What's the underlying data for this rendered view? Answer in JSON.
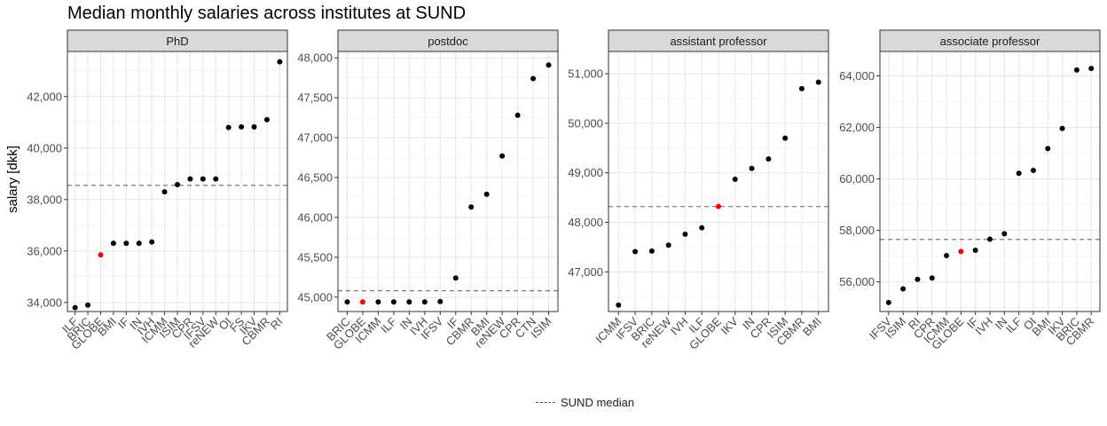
{
  "chart_data": {
    "type": "scatter",
    "title": "Median monthly salaries across institutes at SUND",
    "ylabel": "salary [dkk]",
    "legend": {
      "label": "SUND median",
      "position": "bottom"
    },
    "grid": true,
    "highlight_category": "GLOBE",
    "colors": {
      "point": "#000000",
      "highlight": "#ff0000",
      "strip": "#d9d9d9",
      "median_line": "#777777"
    },
    "panels": [
      {
        "name": "PhD",
        "median": 38550,
        "ylim": [
          33650,
          43750
        ],
        "yticks": [
          34000,
          36000,
          38000,
          40000,
          42000
        ],
        "ytick_labels": [
          "34,000",
          "36,000",
          "38,000",
          "40,000",
          "42,000"
        ],
        "categories": [
          "ILF",
          "BRIC",
          "GLOBE",
          "BMI",
          "IF",
          "IN",
          "IVH",
          "ICMM",
          "ISIM",
          "CPR",
          "IFSV",
          "reNEW",
          "OI",
          "FS",
          "IKV",
          "CBMR",
          "RI"
        ],
        "values": [
          33800,
          33900,
          35850,
          36300,
          36300,
          36300,
          36350,
          38300,
          38580,
          38800,
          38800,
          38800,
          40800,
          40820,
          40820,
          41100,
          43350
        ]
      },
      {
        "name": "postdoc",
        "median": 45080,
        "ylim": [
          44820,
          48080
        ],
        "yticks": [
          45000,
          45500,
          46000,
          46500,
          47000,
          47500,
          48000
        ],
        "ytick_labels": [
          "45,000",
          "45,500",
          "46,000",
          "46,500",
          "47,000",
          "47,500",
          "48,000"
        ],
        "categories": [
          "BRIC",
          "GLOBE",
          "ICMM",
          "ILF",
          "IN",
          "IVH",
          "IFSV",
          "IF",
          "CBMR",
          "BMI",
          "reNEW",
          "CPR",
          "CTN",
          "ISIM"
        ],
        "values": [
          44940,
          44940,
          44940,
          44940,
          44940,
          44940,
          44945,
          45240,
          46130,
          46290,
          46770,
          47280,
          47740,
          47910
        ]
      },
      {
        "name": "assistant professor",
        "median": 48320,
        "ylim": [
          46200,
          51450
        ],
        "yticks": [
          47000,
          48000,
          49000,
          50000,
          51000
        ],
        "ytick_labels": [
          "47,000",
          "48,000",
          "49,000",
          "50,000",
          "51,000"
        ],
        "categories": [
          "ICMM",
          "IFSV",
          "BRIC",
          "reNEW",
          "IVH",
          "ILF",
          "GLOBE",
          "IKV",
          "IN",
          "CPR",
          "ISIM",
          "CBMR",
          "BMI"
        ],
        "values": [
          46330,
          47410,
          47420,
          47540,
          47760,
          47890,
          48320,
          48870,
          49090,
          49280,
          49700,
          50700,
          50830
        ]
      },
      {
        "name": "associate professor",
        "median": 57650,
        "ylim": [
          54850,
          64950
        ],
        "yticks": [
          56000,
          58000,
          60000,
          62000,
          64000
        ],
        "ytick_labels": [
          "56,000",
          "58,000",
          "60,000",
          "62,000",
          "64,000"
        ],
        "categories": [
          "IFSV",
          "ISIM",
          "RI",
          "CPR",
          "ICMM",
          "GLOBE",
          "IF",
          "IVH",
          "IN",
          "ILF",
          "OI",
          "BMI",
          "IKV",
          "BRIC",
          "CBMR"
        ],
        "values": [
          55200,
          55730,
          56100,
          56150,
          57020,
          57180,
          57230,
          57660,
          57870,
          60220,
          60330,
          61180,
          61960,
          64230,
          64290
        ]
      }
    ]
  }
}
